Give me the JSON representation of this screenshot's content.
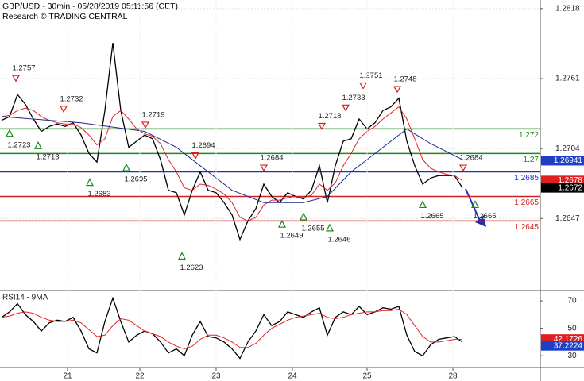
{
  "header": {
    "title": "GBP/USD - 30min - 05/28/2019 05:11:56 (CET)",
    "subtitle": "Research © TRADING CENTRAL"
  },
  "chart_data": [
    {
      "type": "line",
      "x": [
        0,
        1,
        2,
        3,
        4,
        5,
        6,
        7,
        8,
        9,
        10,
        11,
        12,
        13,
        14,
        15,
        16,
        17,
        18,
        19,
        20,
        21,
        22,
        23,
        24,
        25,
        26,
        27,
        28,
        29,
        30,
        31,
        32,
        33,
        34,
        35,
        36,
        37,
        38,
        39,
        40,
        41,
        42,
        43,
        44,
        45,
        46,
        47,
        48,
        49,
        50,
        51,
        52,
        53,
        54,
        55,
        56,
        57,
        58
      ],
      "xlim": [
        -0.2,
        67.8
      ],
      "ylim": [
        1.2589,
        1.2825
      ],
      "yticks": [
        1.2818,
        1.2761,
        1.2704,
        1.2647
      ],
      "grid": true,
      "series": [
        {
          "color": "#000000",
          "values": [
            1.2727,
            1.273,
            1.2748,
            1.274,
            1.2728,
            1.2718,
            1.2722,
            1.2724,
            1.2722,
            1.2725,
            1.2715,
            1.27,
            1.2693,
            1.2735,
            1.279,
            1.2735,
            1.2705,
            1.271,
            1.2715,
            1.2712,
            1.2695,
            1.267,
            1.2668,
            1.265,
            1.267,
            1.2685,
            1.267,
            1.2668,
            1.266,
            1.265,
            1.263,
            1.2645,
            1.2655,
            1.2675,
            1.2665,
            1.266,
            1.2668,
            1.2665,
            1.2663,
            1.267,
            1.269,
            1.266,
            1.269,
            1.271,
            1.2712,
            1.2728,
            1.272,
            1.2725,
            1.2735,
            1.2738,
            1.2745,
            1.271,
            1.269,
            1.2675,
            1.268,
            1.2682,
            1.2682,
            1.2682,
            1.2672
          ]
        },
        {
          "color": "#e0262a",
          "values": [
            1.273,
            1.2731,
            1.2735,
            1.2737,
            1.2735,
            1.273,
            1.2727,
            1.2725,
            1.2724,
            1.2724,
            1.2721,
            1.2715,
            1.2707,
            1.2712,
            1.273,
            1.2735,
            1.2728,
            1.272,
            1.2716,
            1.2714,
            1.2708,
            1.2695,
            1.2685,
            1.2672,
            1.267,
            1.2675,
            1.2674,
            1.2671,
            1.2667,
            1.266,
            1.2648,
            1.2645,
            1.2648,
            1.2658,
            1.2662,
            1.2662,
            1.2664,
            1.2665,
            1.2664,
            1.2666,
            1.2675,
            1.267,
            1.2676,
            1.269,
            1.27,
            1.2712,
            1.2718,
            1.2722,
            1.2728,
            1.2733,
            1.2738,
            1.2728,
            1.2712,
            1.2695,
            1.2688,
            1.2685,
            1.2683,
            1.2682,
            1.2678
          ]
        },
        {
          "color": "#1f2b8f",
          "x": [
            0,
            10,
            18,
            22,
            25,
            29,
            33,
            38,
            41,
            44,
            48,
            51,
            54,
            58
          ],
          "values": [
            1.273,
            1.2725,
            1.2718,
            1.2705,
            1.269,
            1.267,
            1.266,
            1.266,
            1.2665,
            1.2685,
            1.2705,
            1.272,
            1.2708,
            1.2695
          ]
        }
      ],
      "levels": [
        {
          "value": 1.272,
          "color": "#1a8a1a"
        },
        {
          "value": 1.27,
          "color": "#1a8a1a"
        },
        {
          "value": 1.2685,
          "color": "#1e30c8"
        },
        {
          "value": 1.2665,
          "color": "#d42020"
        },
        {
          "value": 1.2645,
          "color": "#d42020"
        }
      ],
      "price_boxes": [
        {
          "value": 1.26941,
          "color": "#1e40c8"
        },
        {
          "value": 1.2678,
          "color": "#e02020"
        },
        {
          "value": 1.2672,
          "color": "#000000"
        }
      ],
      "highs": [
        {
          "x": 1.8,
          "value": 1.2757
        },
        {
          "x": 7.8,
          "value": 1.2732
        },
        {
          "x": 18.1,
          "value": 1.2719
        },
        {
          "x": 24.4,
          "value": 1.2694
        },
        {
          "x": 33,
          "value": 1.2684
        },
        {
          "x": 40.3,
          "value": 1.2718
        },
        {
          "x": 43.3,
          "value": 1.2733
        },
        {
          "x": 45.5,
          "value": 1.2751
        },
        {
          "x": 49.8,
          "value": 1.2748
        },
        {
          "x": 58.1,
          "value": 1.2684
        }
      ],
      "lows": [
        {
          "x": 1,
          "value": 1.2723
        },
        {
          "x": 4.6,
          "value": 1.2713
        },
        {
          "x": 11.1,
          "value": 1.2683
        },
        {
          "x": 15.7,
          "value": 1.2695
        },
        {
          "x": 22.7,
          "value": 1.2623
        },
        {
          "x": 35.3,
          "value": 1.2649
        },
        {
          "x": 38,
          "value": 1.2655
        },
        {
          "x": 41.3,
          "value": 1.2646
        },
        {
          "x": 53,
          "value": 1.2665
        },
        {
          "x": 59.6,
          "value": 1.2665
        }
      ]
    },
    {
      "type": "line",
      "title": "RSI14 - 9MA",
      "x": [
        0,
        1,
        2,
        3,
        4,
        5,
        6,
        7,
        8,
        9,
        10,
        11,
        12,
        13,
        14,
        15,
        16,
        17,
        18,
        19,
        20,
        21,
        22,
        23,
        24,
        25,
        26,
        27,
        28,
        29,
        30,
        31,
        32,
        33,
        34,
        35,
        36,
        37,
        38,
        39,
        40,
        41,
        42,
        43,
        44,
        45,
        46,
        47,
        48,
        49,
        50,
        51,
        52,
        53,
        54,
        55,
        56,
        57,
        58
      ],
      "xlim": [
        -0.2,
        67.8
      ],
      "ylim": [
        22,
        77
      ],
      "yticks": [
        30,
        50,
        70
      ],
      "xticks": [
        {
          "value": 8.3,
          "label": "21"
        },
        {
          "value": 17.4,
          "label": "22"
        },
        {
          "value": 27,
          "label": "23"
        },
        {
          "value": 36.6,
          "label": "24"
        },
        {
          "value": 46,
          "label": "25"
        },
        {
          "value": 56.8,
          "label": "28"
        }
      ],
      "series": [
        {
          "color": "#000000",
          "values": [
            58,
            62,
            68,
            60,
            55,
            48,
            54,
            56,
            55,
            58,
            48,
            35,
            32,
            55,
            72,
            55,
            40,
            45,
            48,
            46,
            40,
            32,
            35,
            30,
            45,
            55,
            44,
            43,
            40,
            35,
            28,
            40,
            48,
            60,
            52,
            55,
            62,
            60,
            58,
            62,
            65,
            45,
            58,
            62,
            60,
            66,
            60,
            62,
            65,
            64,
            66,
            45,
            33,
            30,
            38,
            42,
            43,
            44,
            40
          ]
        },
        {
          "color": "#e0262a",
          "values": [
            58,
            59,
            61,
            62,
            61,
            58,
            56,
            55,
            55,
            56,
            54,
            49,
            44,
            45,
            52,
            57,
            56,
            52,
            48,
            46,
            44,
            40,
            37,
            35,
            37,
            42,
            45,
            45,
            43,
            40,
            36,
            36,
            39,
            45,
            50,
            53,
            56,
            58,
            59,
            60,
            61,
            58,
            57,
            58,
            60,
            61,
            62,
            62,
            63,
            63,
            64,
            60,
            52,
            44,
            40,
            40,
            41,
            42,
            42
          ]
        }
      ],
      "price_boxes": [
        {
          "value": 42.1726,
          "color": "#e02020"
        },
        {
          "value": 37.2224,
          "color": "#1e40c8"
        }
      ]
    }
  ]
}
